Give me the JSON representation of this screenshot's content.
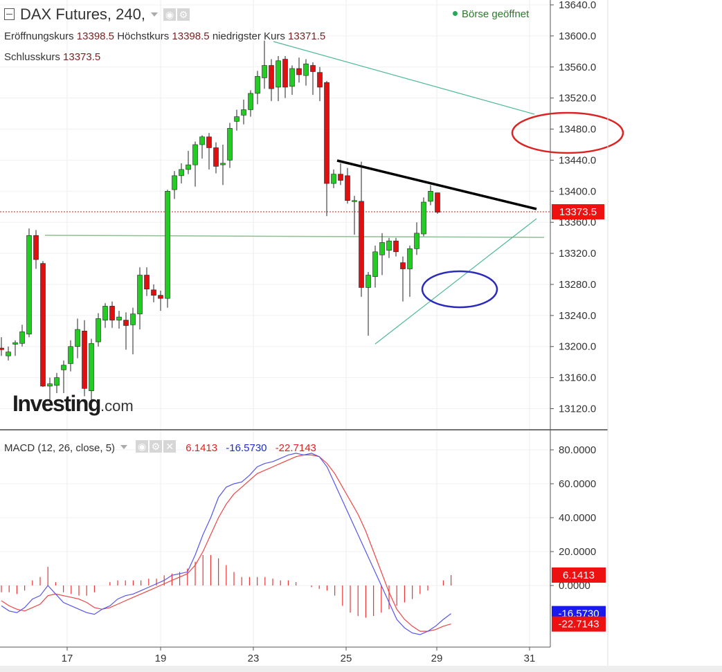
{
  "header": {
    "title": "DAX Futures, 240,",
    "status": "Börse geöffnet",
    "open_label": "Eröffnungskurs",
    "open_value": "13398.5",
    "high_label": "Höchstkurs",
    "high_value": "13398.5",
    "low_label": "niedrigster Kurs",
    "low_value": "13371.5",
    "close_label": "Schlusskurs",
    "close_value": "13373.5"
  },
  "logo": {
    "main": "Investing",
    "suffix": ".com"
  },
  "macd_header": {
    "label": "MACD (12, 26, close, 5)",
    "v1": "6.1413",
    "v2": "-16.5730",
    "v3": "-22.7143"
  },
  "colors": {
    "up": "#22cc22",
    "down": "#e01010",
    "macd_line": "#5555ee",
    "signal_line": "#ee4444",
    "histogram": "#ee3333",
    "price_tag": "#ee1111",
    "macd_tag_blue": "#1a1aee"
  },
  "chart_data": [
    {
      "type": "candlestick",
      "ylim": [
        13100,
        13640
      ],
      "y_ticks": [
        "13640.0",
        "13600.0",
        "13560.0",
        "13520.0",
        "13480.0",
        "13440.0",
        "13400.0",
        "13360.0",
        "13320.0",
        "13280.0",
        "13240.0",
        "13200.0",
        "13160.0",
        "13120.0"
      ],
      "x_ticks": [
        "17",
        "19",
        "23",
        "25",
        "29",
        "31"
      ],
      "current_price_label": "13373.5",
      "current_price": 13373.5,
      "candles": [
        {
          "o": 13198,
          "h": 13212,
          "l": 13188,
          "c": 13196
        },
        {
          "o": 13188,
          "h": 13200,
          "l": 13182,
          "c": 13193
        },
        {
          "o": 13203,
          "h": 13208,
          "l": 13188,
          "c": 13205
        },
        {
          "o": 13204,
          "h": 13228,
          "l": 13200,
          "c": 13219
        },
        {
          "o": 13216,
          "h": 13352,
          "l": 13212,
          "c": 13343
        },
        {
          "o": 13343,
          "h": 13350,
          "l": 13300,
          "c": 13312
        },
        {
          "o": 13307,
          "h": 13310,
          "l": 13148,
          "c": 13149
        },
        {
          "o": 13149,
          "h": 13160,
          "l": 13128,
          "c": 13152
        },
        {
          "o": 13150,
          "h": 13166,
          "l": 13140,
          "c": 13160
        },
        {
          "o": 13170,
          "h": 13182,
          "l": 13140,
          "c": 13176
        },
        {
          "o": 13178,
          "h": 13208,
          "l": 13168,
          "c": 13200
        },
        {
          "o": 13200,
          "h": 13236,
          "l": 13185,
          "c": 13222
        },
        {
          "o": 13220,
          "h": 13234,
          "l": 13136,
          "c": 13146
        },
        {
          "o": 13143,
          "h": 13210,
          "l": 13131,
          "c": 13204
        },
        {
          "o": 13206,
          "h": 13243,
          "l": 13200,
          "c": 13236
        },
        {
          "o": 13234,
          "h": 13256,
          "l": 13224,
          "c": 13252
        },
        {
          "o": 13252,
          "h": 13258,
          "l": 13224,
          "c": 13234
        },
        {
          "o": 13234,
          "h": 13246,
          "l": 13223,
          "c": 13238
        },
        {
          "o": 13234,
          "h": 13244,
          "l": 13196,
          "c": 13227
        },
        {
          "o": 13228,
          "h": 13250,
          "l": 13190,
          "c": 13242
        },
        {
          "o": 13242,
          "h": 13302,
          "l": 13222,
          "c": 13292
        },
        {
          "o": 13292,
          "h": 13302,
          "l": 13265,
          "c": 13274
        },
        {
          "o": 13273,
          "h": 13280,
          "l": 13257,
          "c": 13266
        },
        {
          "o": 13266,
          "h": 13272,
          "l": 13246,
          "c": 13262
        },
        {
          "o": 13262,
          "h": 13402,
          "l": 13250,
          "c": 13400
        },
        {
          "o": 13402,
          "h": 13426,
          "l": 13390,
          "c": 13420
        },
        {
          "o": 13420,
          "h": 13436,
          "l": 13410,
          "c": 13428
        },
        {
          "o": 13428,
          "h": 13452,
          "l": 13422,
          "c": 13434
        },
        {
          "o": 13434,
          "h": 13464,
          "l": 13406,
          "c": 13460
        },
        {
          "o": 13460,
          "h": 13472,
          "l": 13442,
          "c": 13470
        },
        {
          "o": 13470,
          "h": 13475,
          "l": 13428,
          "c": 13456
        },
        {
          "o": 13456,
          "h": 13463,
          "l": 13423,
          "c": 13432
        },
        {
          "o": 13434,
          "h": 13460,
          "l": 13408,
          "c": 13436
        },
        {
          "o": 13440,
          "h": 13488,
          "l": 13430,
          "c": 13481
        },
        {
          "o": 13490,
          "h": 13505,
          "l": 13478,
          "c": 13496
        },
        {
          "o": 13498,
          "h": 13518,
          "l": 13486,
          "c": 13505
        },
        {
          "o": 13505,
          "h": 13530,
          "l": 13496,
          "c": 13526
        },
        {
          "o": 13526,
          "h": 13555,
          "l": 13512,
          "c": 13548
        },
        {
          "o": 13546,
          "h": 13594,
          "l": 13532,
          "c": 13562
        },
        {
          "o": 13562,
          "h": 13570,
          "l": 13516,
          "c": 13532
        },
        {
          "o": 13534,
          "h": 13574,
          "l": 13516,
          "c": 13568
        },
        {
          "o": 13570,
          "h": 13574,
          "l": 13520,
          "c": 13534
        },
        {
          "o": 13535,
          "h": 13562,
          "l": 13524,
          "c": 13558
        },
        {
          "o": 13558,
          "h": 13572,
          "l": 13540,
          "c": 13550
        },
        {
          "o": 13549,
          "h": 13570,
          "l": 13536,
          "c": 13564
        },
        {
          "o": 13562,
          "h": 13566,
          "l": 13524,
          "c": 13554
        },
        {
          "o": 13553,
          "h": 13560,
          "l": 13516,
          "c": 13534
        },
        {
          "o": 13540,
          "h": 13542,
          "l": 13368,
          "c": 13410
        },
        {
          "o": 13410,
          "h": 13428,
          "l": 13404,
          "c": 13422
        },
        {
          "o": 13422,
          "h": 13436,
          "l": 13408,
          "c": 13414
        },
        {
          "o": 13420,
          "h": 13430,
          "l": 13384,
          "c": 13388
        },
        {
          "o": 13388,
          "h": 13394,
          "l": 13344,
          "c": 13388
        },
        {
          "o": 13387,
          "h": 13438,
          "l": 13264,
          "c": 13276
        },
        {
          "o": 13276,
          "h": 13296,
          "l": 13214,
          "c": 13292
        },
        {
          "o": 13290,
          "h": 13330,
          "l": 13276,
          "c": 13322
        },
        {
          "o": 13318,
          "h": 13346,
          "l": 13292,
          "c": 13334
        },
        {
          "o": 13324,
          "h": 13340,
          "l": 13314,
          "c": 13336
        },
        {
          "o": 13336,
          "h": 13340,
          "l": 13316,
          "c": 13322
        },
        {
          "o": 13308,
          "h": 13316,
          "l": 13258,
          "c": 13300
        },
        {
          "o": 13300,
          "h": 13330,
          "l": 13264,
          "c": 13326
        },
        {
          "o": 13326,
          "h": 13360,
          "l": 13318,
          "c": 13346
        },
        {
          "o": 13345,
          "h": 13392,
          "l": 13342,
          "c": 13386
        },
        {
          "o": 13387,
          "h": 13408,
          "l": 13382,
          "c": 13400
        },
        {
          "o": 13398,
          "h": 13398,
          "l": 13371,
          "c": 13373
        }
      ]
    },
    {
      "type": "line",
      "ylim": [
        -90,
        90
      ],
      "y_ticks": [
        "80.0000",
        "60.0000",
        "40.0000",
        "20.0000",
        "0.0000"
      ],
      "current_labels": [
        "6.1413",
        "-16.5730",
        "-22.7143"
      ],
      "series": [
        {
          "name": "MACD",
          "values": [
            -12,
            -15,
            -16,
            -13,
            -8,
            -6,
            0,
            -5,
            -10,
            -12,
            -14,
            -16,
            -17,
            -14,
            -12,
            -8,
            -6,
            -5,
            -3,
            -1,
            1,
            3,
            6,
            7,
            8,
            18,
            30,
            40,
            52,
            58,
            60,
            61,
            65,
            70,
            72,
            73,
            75,
            77,
            78,
            77,
            78,
            76,
            70,
            60,
            50,
            40,
            30,
            20,
            10,
            0,
            -10,
            -20,
            -25,
            -28,
            -29,
            -27,
            -24,
            -20,
            -16.573
          ]
        },
        {
          "name": "Signal",
          "values": [
            -9,
            -12,
            -14,
            -15,
            -13,
            -11,
            -6,
            -5,
            -6,
            -7,
            -8,
            -10,
            -13,
            -14,
            -13,
            -11,
            -9,
            -7,
            -5,
            -3,
            -1,
            1,
            3,
            5,
            7,
            12,
            20,
            30,
            40,
            48,
            54,
            58,
            62,
            66,
            68,
            70,
            72,
            74,
            76,
            77,
            77,
            76,
            72,
            66,
            58,
            50,
            42,
            32,
            20,
            8,
            -4,
            -14,
            -20,
            -24,
            -27,
            -27,
            -26,
            -24,
            -22.714
          ]
        },
        {
          "name": "Histogram",
          "values": [
            -4,
            -4,
            -5,
            -3,
            3,
            5,
            11,
            2,
            -4,
            -5,
            -6,
            -6,
            -4,
            0,
            2,
            3,
            3,
            3,
            3,
            4,
            4,
            6,
            7,
            8,
            10,
            14,
            18,
            18,
            16,
            12,
            8,
            5,
            5,
            5,
            5,
            4,
            3,
            3,
            2,
            0,
            -1,
            -2,
            -3,
            -6,
            -12,
            -16,
            -18,
            -19,
            -18,
            -16,
            -14,
            -12,
            -10,
            -8,
            -5,
            -3,
            0,
            3,
            6.1413
          ]
        }
      ]
    }
  ]
}
